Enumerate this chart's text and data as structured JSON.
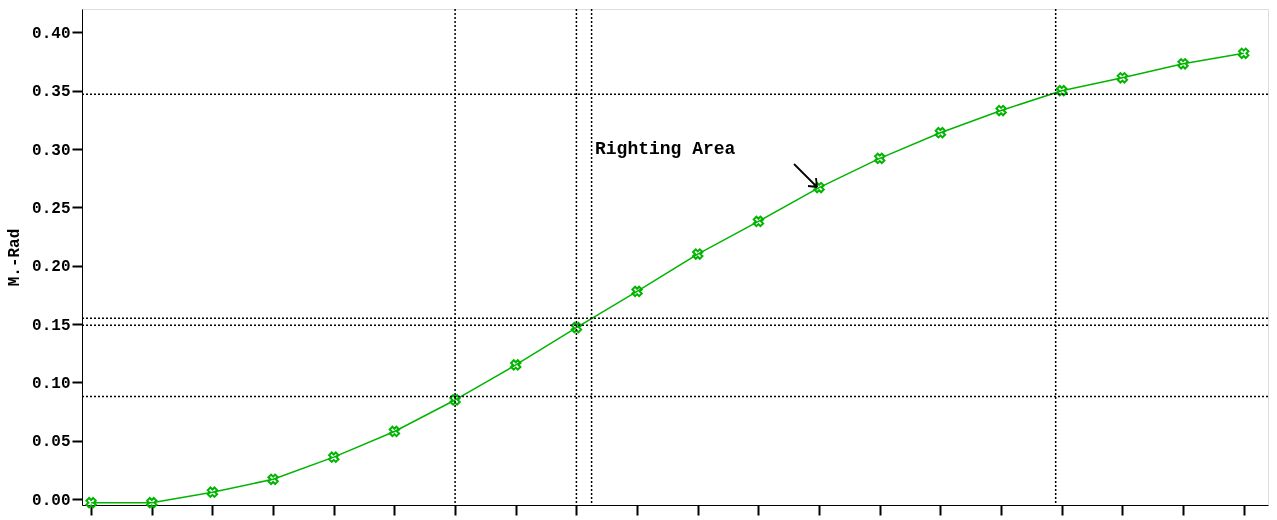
{
  "chart_data": {
    "type": "line",
    "ylabel": "M.-Rad",
    "categories": [
      null,
      null,
      null,
      null,
      null,
      null,
      null,
      null,
      null,
      null,
      null,
      null,
      null,
      null,
      null,
      null,
      null,
      null,
      null,
      null
    ],
    "series": [
      {
        "color": "#00b400",
        "values": [
          -0.003,
          -0.003,
          0.006,
          0.017,
          0.036,
          0.058,
          0.085,
          0.115,
          0.147,
          0.178,
          0.21,
          0.238,
          0.267,
          0.292,
          0.314,
          0.333,
          0.35,
          0.361,
          0.373,
          0.382
        ]
      }
    ],
    "ylim": [
      -0.005,
      0.42
    ],
    "yticks": [
      {
        "value": 0,
        "label": "0.00"
      },
      {
        "value": 0.05,
        "label": "0.05"
      },
      {
        "value": 0.1,
        "label": "0.10"
      },
      {
        "value": 0.15,
        "label": "0.15"
      },
      {
        "value": 0.2,
        "label": "0.20"
      },
      {
        "value": 0.25,
        "label": "0.25"
      },
      {
        "value": 0.3,
        "label": "0.30"
      },
      {
        "value": 0.35,
        "label": "0.35"
      },
      {
        "value": 0.4,
        "label": "0.40"
      }
    ],
    "tick_labels": "y",
    "grid": false,
    "marker": "cross",
    "line_style": "solid",
    "ref_lines": [
      {
        "axis": "y",
        "value": 0.347,
        "color": "#000000",
        "line_style": "dotted"
      },
      {
        "axis": "y",
        "value": 0.155,
        "color": "#000000",
        "line_style": "dotted"
      },
      {
        "axis": "y",
        "value": 0.149,
        "color": "#000000",
        "line_style": "dotted"
      },
      {
        "axis": "y",
        "value": 0.088,
        "color": "#000000",
        "line_style": "dotted"
      }
    ],
    "annotations": [
      "Righting Area"
    ]
  }
}
